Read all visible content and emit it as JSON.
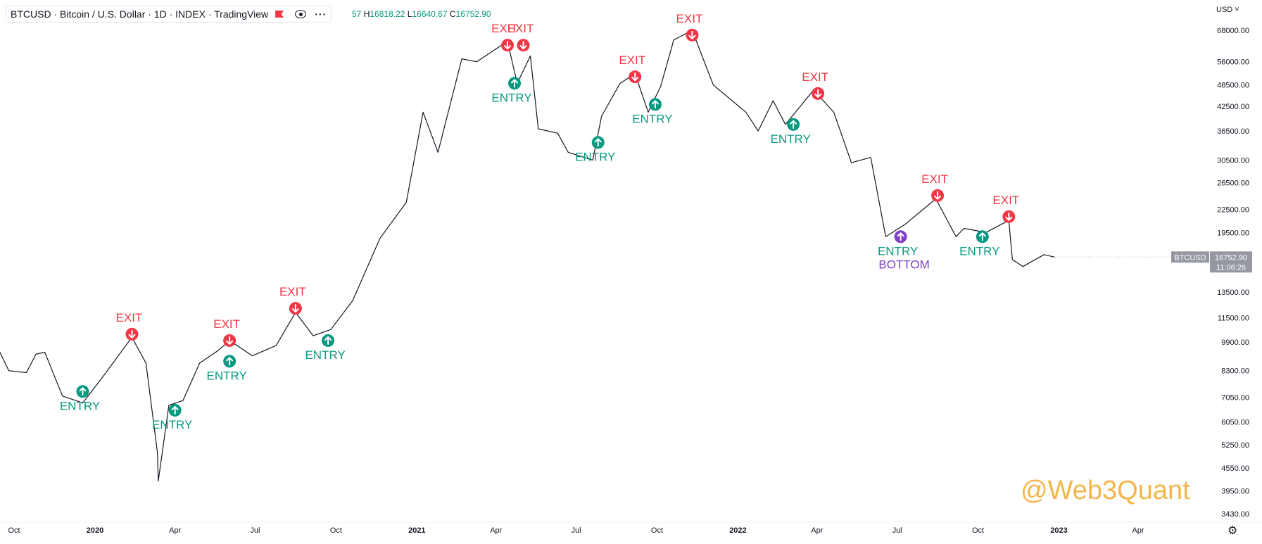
{
  "header": {
    "title": "BTCUSD · Bitcoin / U.S. Dollar · 1D · INDEX · TradingView",
    "ohlc_prefix": "57",
    "high_label": "H",
    "high": "16818.22",
    "low_label": "L",
    "low": "16640.67",
    "close_label": "C",
    "close": "16752.90"
  },
  "currency": "USD",
  "watermark": "@Web3Quant",
  "price_tag": {
    "symbol": "BTCUSD",
    "price": "16752.90",
    "countdown": "11:06:26"
  },
  "colors": {
    "exit": "#f23645",
    "entry": "#089981",
    "bottom": "#7e3fc7",
    "candle": "#131722",
    "watermark": "#f5b54a"
  },
  "chart_data": {
    "type": "line",
    "title": "BTCUSD · Bitcoin / U.S. Dollar · 1D · INDEX · TradingView",
    "y_scale": "log",
    "y_ticks": [
      "68000.00",
      "56000.00",
      "48500.00",
      "42500.00",
      "36500.00",
      "30500.00",
      "26500.00",
      "22500.00",
      "19500.00",
      "16500.00",
      "13500.00",
      "11500.00",
      "9900.00",
      "8300.00",
      "7050.00",
      "6050.00",
      "5250.00",
      "4550.00",
      "3950.00",
      "3430.00"
    ],
    "x_ticks": [
      {
        "label": "Oct",
        "date": "2019-10-01"
      },
      {
        "label": "2020",
        "date": "2020-01-01"
      },
      {
        "label": "Apr",
        "date": "2020-04-01"
      },
      {
        "label": "Jul",
        "date": "2020-07-01"
      },
      {
        "label": "Oct",
        "date": "2020-10-01"
      },
      {
        "label": "2021",
        "date": "2021-01-01"
      },
      {
        "label": "Apr",
        "date": "2021-04-01"
      },
      {
        "label": "Jul",
        "date": "2021-07-01"
      },
      {
        "label": "Oct",
        "date": "2021-10-01"
      },
      {
        "label": "2022",
        "date": "2022-01-01"
      },
      {
        "label": "Apr",
        "date": "2022-04-01"
      },
      {
        "label": "Jul",
        "date": "2022-07-01"
      },
      {
        "label": "Oct",
        "date": "2022-10-01"
      },
      {
        "label": "2023",
        "date": "2023-01-01"
      },
      {
        "label": "Apr",
        "date": "2023-04-01"
      }
    ],
    "series": [
      {
        "x": [
          "2019-09-05",
          "2019-09-25",
          "2019-10-15",
          "2019-10-26",
          "2019-11-05",
          "2019-11-25",
          "2019-12-18",
          "2020-01-10",
          "2020-02-12",
          "2020-02-28",
          "2020-03-12",
          "2020-03-13",
          "2020-03-25",
          "2020-04-10",
          "2020-04-29",
          "2020-05-20",
          "2020-06-02",
          "2020-06-28",
          "2020-07-25",
          "2020-08-16",
          "2020-09-05",
          "2020-09-25",
          "2020-10-20",
          "2020-11-20",
          "2020-12-20",
          "2021-01-08",
          "2021-01-25",
          "2021-02-21",
          "2021-03-10",
          "2021-04-14",
          "2021-04-25",
          "2021-05-10",
          "2021-05-19",
          "2021-06-10",
          "2021-06-22",
          "2021-07-20",
          "2021-07-30",
          "2021-08-20",
          "2021-09-06",
          "2021-09-21",
          "2021-10-05",
          "2021-10-20",
          "2021-11-10",
          "2021-12-04",
          "2022-01-10",
          "2022-01-24",
          "2022-02-10",
          "2022-02-24",
          "2022-03-28",
          "2022-04-20",
          "2022-05-10",
          "2022-06-01",
          "2022-06-18",
          "2022-07-10",
          "2022-08-14",
          "2022-09-06",
          "2022-09-15",
          "2022-10-10",
          "2022-11-05",
          "2022-11-09",
          "2022-11-21",
          "2022-12-15",
          "2022-12-27"
        ],
        "values": [
          10400,
          8300,
          8200,
          9200,
          9300,
          7100,
          6800,
          8000,
          10200,
          8700,
          5000,
          4200,
          6700,
          6900,
          8700,
          9400,
          10000,
          9100,
          9700,
          11900,
          10300,
          10700,
          12800,
          18800,
          23500,
          41000,
          32000,
          57000,
          56000,
          63500,
          49000,
          58000,
          37000,
          36000,
          32000,
          30500,
          40000,
          49000,
          52000,
          41000,
          48000,
          64000,
          68000,
          48500,
          41000,
          36500,
          44000,
          38000,
          47000,
          41000,
          30000,
          31000,
          19000,
          20500,
          24000,
          19000,
          20000,
          19500,
          21000,
          16500,
          15800,
          17000,
          16750
        ]
      }
    ],
    "signals": [
      {
        "type": "entry",
        "label": "ENTRY",
        "date": "2019-12-18",
        "price": 7300
      },
      {
        "type": "exit",
        "label": "EXIT",
        "date": "2020-02-12",
        "price": 10400
      },
      {
        "type": "entry",
        "label": "ENTRY",
        "date": "2020-04-01",
        "price": 6500
      },
      {
        "type": "exit",
        "label": "EXIT",
        "date": "2020-06-02",
        "price": 10000
      },
      {
        "type": "entry",
        "label": "ENTRY",
        "date": "2020-06-02",
        "price": 8800
      },
      {
        "type": "exit",
        "label": "EXIT",
        "date": "2020-08-16",
        "price": 12200
      },
      {
        "type": "entry",
        "label": "ENTRY",
        "date": "2020-09-22",
        "price": 10000
      },
      {
        "type": "exit",
        "label": "EXIT",
        "date": "2021-04-14",
        "price": 62000
      },
      {
        "type": "entry",
        "label": "ENTRY",
        "date": "2021-04-22",
        "price": 49000
      },
      {
        "type": "exit",
        "label": "EXIT",
        "date": "2021-05-02",
        "price": 62000
      },
      {
        "type": "entry",
        "label": "ENTRY",
        "date": "2021-07-26",
        "price": 34000
      },
      {
        "type": "exit",
        "label": "EXIT",
        "date": "2021-09-06",
        "price": 51000
      },
      {
        "type": "entry",
        "label": "ENTRY",
        "date": "2021-09-29",
        "price": 43000
      },
      {
        "type": "exit",
        "label": "EXIT",
        "date": "2021-11-10",
        "price": 66000
      },
      {
        "type": "entry",
        "label": "ENTRY",
        "date": "2022-03-05",
        "price": 38000
      },
      {
        "type": "exit",
        "label": "EXIT",
        "date": "2022-04-02",
        "price": 46000
      },
      {
        "type": "bottom",
        "label": "ENTRY",
        "sublabel": "BOTTOM",
        "date": "2022-07-05",
        "price": 19000
      },
      {
        "type": "exit",
        "label": "EXIT",
        "date": "2022-08-16",
        "price": 24500
      },
      {
        "type": "entry",
        "label": "ENTRY",
        "date": "2022-10-06",
        "price": 19000
      },
      {
        "type": "exit",
        "label": "EXIT",
        "date": "2022-11-05",
        "price": 21500
      }
    ]
  }
}
